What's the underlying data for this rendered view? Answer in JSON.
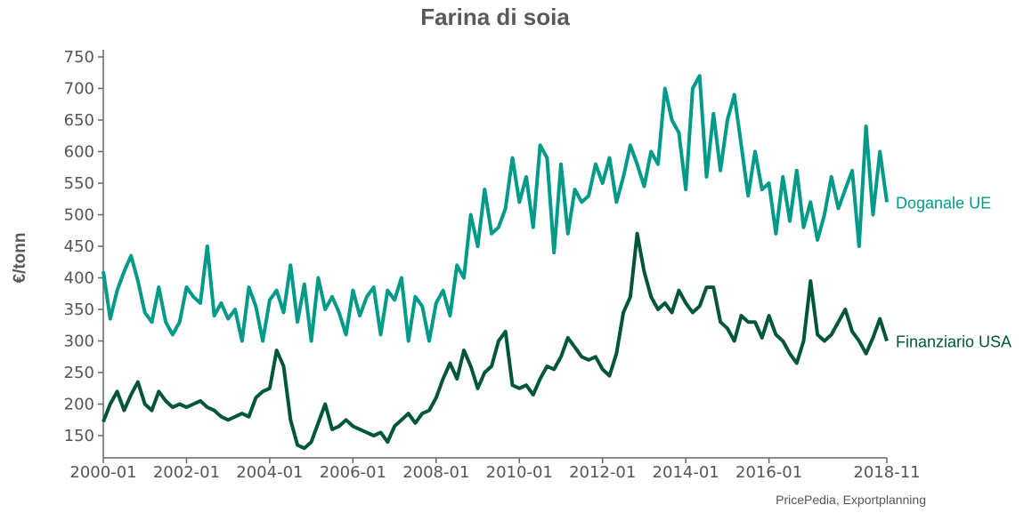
{
  "chart_data": {
    "type": "line",
    "title": "Farina di soia",
    "ylabel": "€/tonn",
    "xlabel": "",
    "ylim": [
      120,
      760
    ],
    "yticks": [
      150,
      200,
      250,
      300,
      350,
      400,
      450,
      500,
      550,
      600,
      650,
      700,
      750
    ],
    "xticks": [
      "2000-01",
      "2002-01",
      "2004-01",
      "2006-01",
      "2008-01",
      "2010-01",
      "2012-01",
      "2014-01",
      "2016-01",
      "2018-11"
    ],
    "x_start": "2000-01",
    "x_end": "2018-11",
    "step_months": 2,
    "grid": false,
    "legend": "right-end labels",
    "series": [
      {
        "name": "Doganale UE",
        "color": "#009a88",
        "values": [
          410,
          335,
          380,
          410,
          435,
          395,
          345,
          330,
          385,
          330,
          310,
          330,
          385,
          370,
          360,
          450,
          340,
          360,
          335,
          350,
          300,
          385,
          355,
          300,
          365,
          380,
          345,
          420,
          330,
          390,
          300,
          400,
          350,
          370,
          345,
          310,
          380,
          340,
          370,
          385,
          310,
          380,
          365,
          400,
          300,
          370,
          355,
          300,
          360,
          380,
          340,
          420,
          400,
          500,
          450,
          540,
          470,
          480,
          510,
          590,
          520,
          560,
          480,
          610,
          590,
          440,
          580,
          470,
          540,
          520,
          530,
          580,
          550,
          590,
          520,
          560,
          610,
          580,
          545,
          600,
          580,
          700,
          650,
          630,
          540,
          700,
          720,
          560,
          660,
          570,
          650,
          690,
          610,
          530,
          600,
          540,
          550,
          470,
          560,
          490,
          570,
          480,
          520,
          460,
          500,
          560,
          510,
          540,
          570,
          450,
          640,
          500,
          600,
          520
        ]
      },
      {
        "name": "Finanziario USA",
        "color": "#00563a",
        "values": [
          172,
          200,
          220,
          190,
          215,
          235,
          200,
          190,
          220,
          205,
          195,
          200,
          195,
          200,
          205,
          195,
          190,
          180,
          175,
          180,
          185,
          180,
          210,
          220,
          225,
          285,
          260,
          175,
          135,
          130,
          140,
          170,
          200,
          160,
          165,
          175,
          165,
          160,
          155,
          150,
          155,
          140,
          165,
          175,
          185,
          170,
          185,
          190,
          210,
          240,
          265,
          240,
          285,
          260,
          225,
          250,
          260,
          300,
          315,
          230,
          225,
          230,
          215,
          240,
          260,
          255,
          275,
          305,
          290,
          275,
          270,
          275,
          255,
          245,
          280,
          345,
          370,
          470,
          410,
          370,
          350,
          360,
          345,
          380,
          360,
          345,
          355,
          385,
          385,
          330,
          320,
          300,
          340,
          330,
          330,
          305,
          340,
          310,
          300,
          280,
          265,
          300,
          395,
          310,
          300,
          310,
          330,
          350,
          315,
          300,
          280,
          305,
          335,
          300
        ]
      }
    ],
    "source": "PricePedia, Exportplanning"
  }
}
